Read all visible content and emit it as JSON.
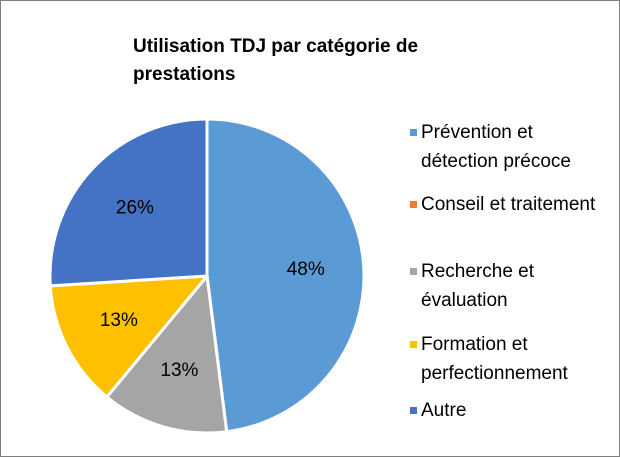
{
  "chart_data": {
    "type": "pie",
    "title": "Utilisation TDJ par catégorie de prestations",
    "categories": [
      "Prévention et détection précoce",
      "Conseil et traitement",
      "Recherche et évaluation",
      "Formation et perfectionnement",
      "Autre"
    ],
    "values": [
      48,
      0,
      13,
      13,
      26
    ],
    "value_labels": [
      "48%",
      null,
      "13%",
      "13%",
      "26%"
    ],
    "colors": [
      "#5b9bd5",
      "#ed7d31",
      "#a5a5a5",
      "#ffc000",
      "#4472c4"
    ],
    "legend": "right"
  }
}
